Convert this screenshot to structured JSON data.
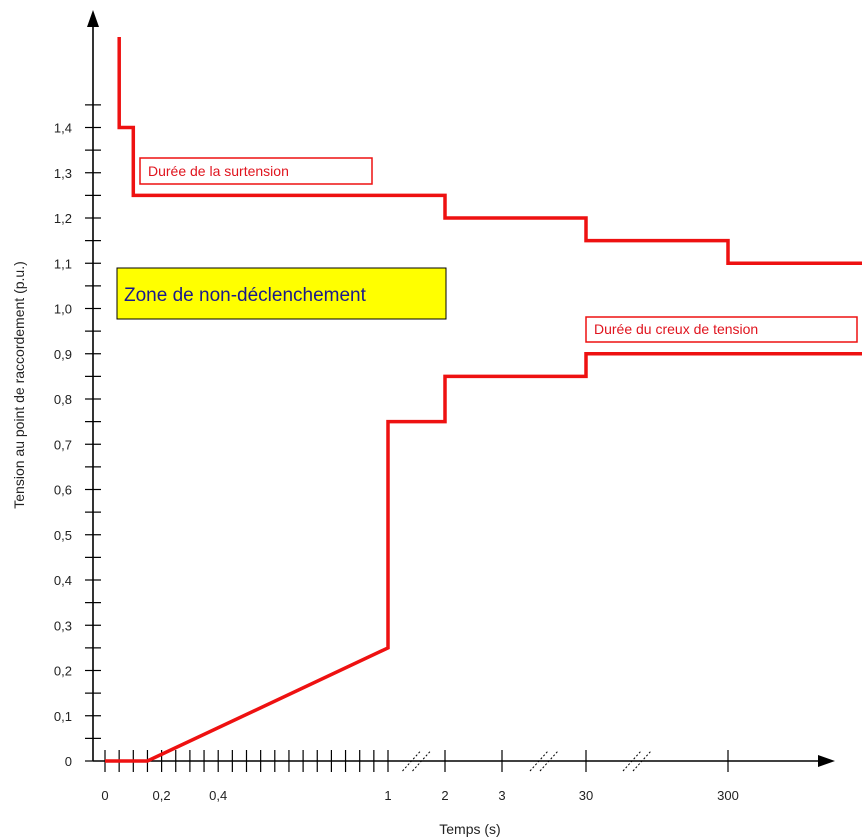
{
  "chart_data": {
    "type": "line",
    "title": "",
    "xlabel": "Temps (s)",
    "ylabel": "Tension au point de raccordement (p.u.)",
    "ylim": [
      0,
      1.4
    ],
    "y_ticks": [
      {
        "value": 0,
        "label": "0"
      },
      {
        "value": 0.1,
        "label": "0,1"
      },
      {
        "value": 0.2,
        "label": "0,2"
      },
      {
        "value": 0.3,
        "label": "0,3"
      },
      {
        "value": 0.4,
        "label": "0,4"
      },
      {
        "value": 0.5,
        "label": "0,5"
      },
      {
        "value": 0.6,
        "label": "0,6"
      },
      {
        "value": 0.7,
        "label": "0,7"
      },
      {
        "value": 0.8,
        "label": "0,8"
      },
      {
        "value": 0.9,
        "label": "0,9"
      },
      {
        "value": 1.0,
        "label": "1,0"
      },
      {
        "value": 1.1,
        "label": "1,1"
      },
      {
        "value": 1.2,
        "label": "1,2"
      },
      {
        "value": 1.3,
        "label": "1,3"
      },
      {
        "value": 1.4,
        "label": "1,4"
      }
    ],
    "x_tick_labels": [
      "0",
      "0,2",
      "0,4",
      "1",
      "2",
      "3",
      "30",
      "300"
    ],
    "x_axis_breaks": [
      "1-2",
      "3-30",
      "30-300"
    ],
    "series": [
      {
        "color": "#ee1111",
        "points": [
          [
            0.05,
            1.6
          ],
          [
            0.05,
            1.4
          ],
          [
            0.1,
            1.4
          ],
          [
            0.1,
            1.25
          ],
          [
            2,
            1.25
          ],
          [
            2,
            1.2
          ],
          [
            30,
            1.2
          ],
          [
            30,
            1.15
          ],
          [
            300,
            1.15
          ],
          [
            300,
            1.1
          ],
          [
            3000,
            1.1
          ]
        ]
      },
      {
        "color": "#ee1111",
        "points": [
          [
            0,
            0
          ],
          [
            0.15,
            0
          ],
          [
            1,
            0.25
          ],
          [
            1,
            0.75
          ],
          [
            2,
            0.75
          ],
          [
            2,
            0.85
          ],
          [
            30,
            0.85
          ],
          [
            30,
            0.9
          ],
          [
            3000,
            0.9
          ]
        ]
      }
    ],
    "annotations": [
      {
        "text": "Durée de la surtension",
        "color": "#e0141e"
      },
      {
        "text": "Durée du creux de tension",
        "color": "#e0141e"
      },
      {
        "text": "Zone de non-déclenchement",
        "color": "#1a1a8c",
        "background": "#ffff00"
      }
    ],
    "grid": false
  }
}
